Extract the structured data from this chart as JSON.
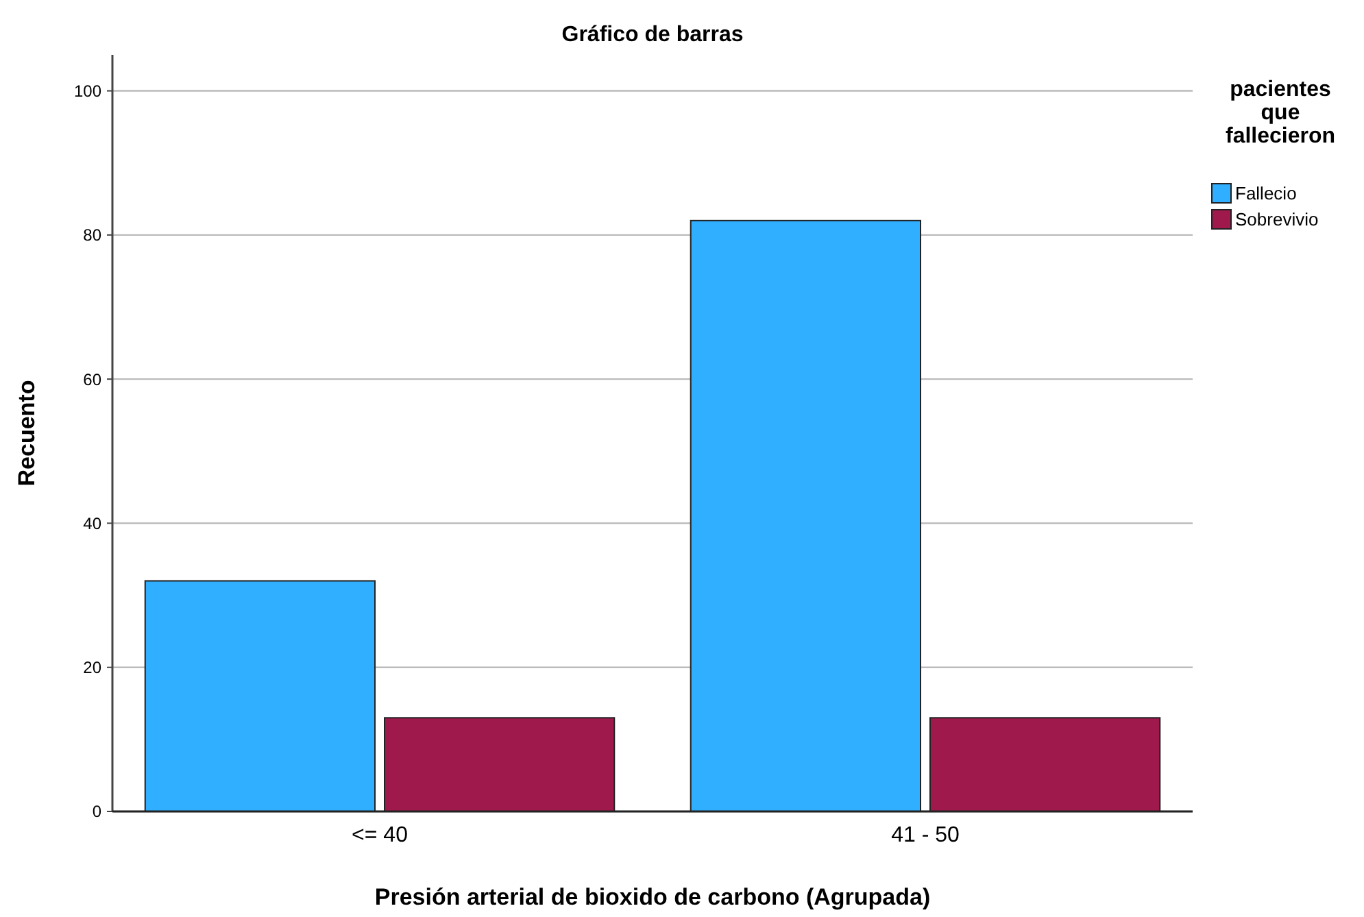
{
  "chart_data": {
    "type": "bar",
    "title": "Gráfico de barras",
    "xlabel": "Presión arterial de bioxido de carbono (Agrupada)",
    "ylabel": "Recuento",
    "legend_title": "pacientes que fallecieron",
    "categories": [
      "<= 40",
      "41 - 50"
    ],
    "series": [
      {
        "name": "Fallecio",
        "color": "#30aeff",
        "values": [
          32,
          82
        ]
      },
      {
        "name": "Sobrevivio",
        "color": "#a0194d",
        "values": [
          13,
          13
        ]
      }
    ],
    "ylim": [
      0,
      105
    ],
    "yticks": [
      0,
      20,
      40,
      60,
      80,
      100
    ],
    "grid": "y",
    "legend": "top right"
  }
}
